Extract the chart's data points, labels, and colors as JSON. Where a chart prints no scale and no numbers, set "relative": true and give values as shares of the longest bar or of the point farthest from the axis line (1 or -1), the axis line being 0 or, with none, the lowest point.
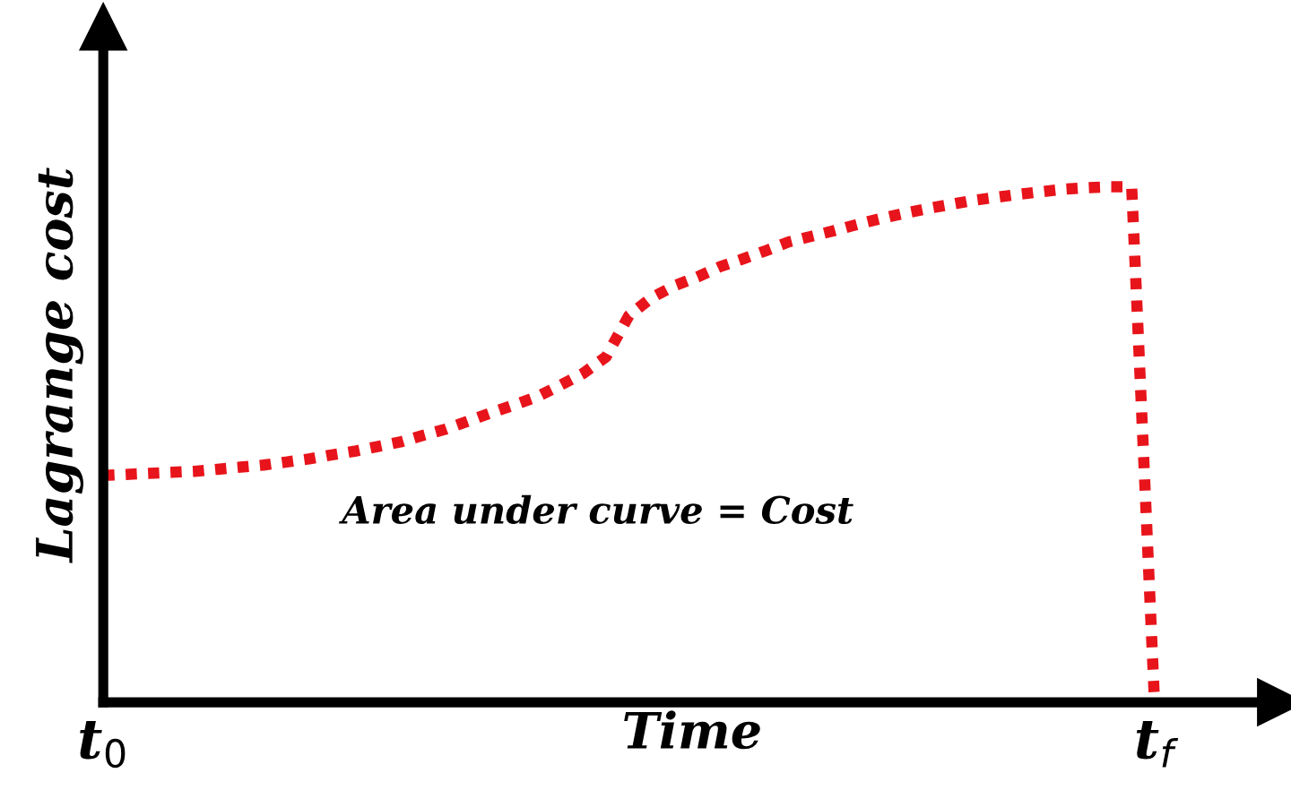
{
  "chart_data": {
    "type": "line",
    "relative": true,
    "xlabel": "Time",
    "ylabel": "Lagrange cost",
    "annotations": [
      "Area under curve = Cost"
    ],
    "categories": [
      "t$_{0}$",
      null,
      null,
      null,
      null,
      null,
      null,
      null,
      null,
      null,
      null,
      null,
      null,
      null,
      null,
      null,
      null,
      null,
      null,
      null,
      null,
      null,
      null,
      null,
      null,
      null,
      null,
      null,
      null,
      null,
      null,
      null,
      null,
      null,
      null,
      null,
      null,
      null,
      null,
      null,
      null,
      null,
      null,
      null,
      null,
      null,
      "t$_{f}$"
    ],
    "tick_labels": "x",
    "line_style": "dotted",
    "marker": "none",
    "series": [
      {
        "color": "#e8141b",
        "values": [
          0.44,
          0.442,
          0.444,
          0.446,
          0.448,
          0.452,
          0.456,
          0.46,
          0.466,
          0.472,
          0.48,
          0.487,
          0.496,
          0.505,
          0.518,
          0.53,
          0.546,
          0.562,
          0.577,
          0.593,
          0.615,
          0.638,
          0.67,
          0.75,
          0.785,
          0.808,
          0.825,
          0.845,
          0.86,
          0.876,
          0.893,
          0.904,
          0.915,
          0.927,
          0.938,
          0.948,
          0.957,
          0.965,
          0.973,
          0.979,
          0.985,
          0.99,
          0.995,
          0.998,
          1.0,
          1.0,
          0.0
        ]
      }
    ]
  }
}
